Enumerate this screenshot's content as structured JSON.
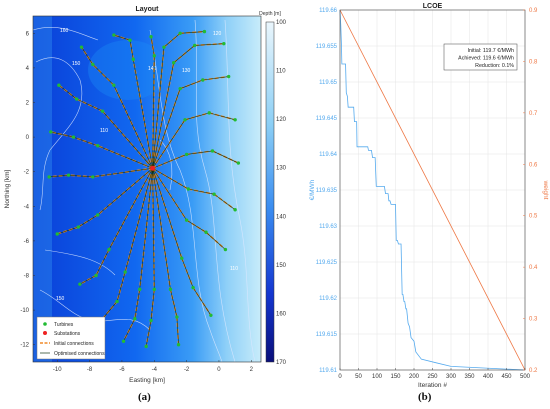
{
  "caption_a": "(a)",
  "caption_b": "(b)",
  "chart_data": [
    {
      "type": "map",
      "title": "Layout",
      "xlabel": "Easting [km]",
      "ylabel": "Northing [km]",
      "xlim": [
        -11.5,
        2.6
      ],
      "ylim": [
        -13,
        7
      ],
      "xticks": [
        -10,
        -8,
        -6,
        -4,
        -2,
        0,
        2
      ],
      "yticks": [
        -12,
        -10,
        -8,
        -6,
        -4,
        -2,
        0,
        2,
        4,
        6
      ],
      "colorbar": {
        "label": "Depth [m]",
        "range": [
          100,
          170
        ],
        "ticks": [
          100,
          110,
          120,
          130,
          140,
          150,
          160,
          170
        ]
      },
      "contour_labels": [
        "160",
        "150",
        "140",
        "130",
        "120",
        "110",
        "150",
        "140",
        "110"
      ],
      "substation": {
        "x": -4.1,
        "y": -1.8
      },
      "legend": {
        "position": "bottom-left",
        "entries": [
          "Turbines",
          "Substations",
          "Initial connections",
          "Optimised connections"
        ]
      },
      "colors": {
        "turbine": "#22bb33",
        "substation": "#ee2222",
        "initial": "#f08a2a",
        "optimised": "#113311"
      }
    },
    {
      "type": "line",
      "title": "LCOE",
      "xlabel": "Iteration #",
      "ylabel_left": "€/MWh",
      "ylabel_right": "weight",
      "xlim": [
        0,
        500
      ],
      "xticks": [
        0,
        50,
        100,
        150,
        200,
        250,
        300,
        350,
        400,
        450,
        500
      ],
      "ylim_left": [
        119.61,
        119.66
      ],
      "yticks_left": [
        "119.61",
        "119.615",
        "119.62",
        "119.625",
        "119.63",
        "119.635",
        "119.64",
        "119.645",
        "119.65",
        "119.655",
        "119.66"
      ],
      "ylim_right": [
        0.2,
        0.9
      ],
      "yticks_right": [
        "0.2",
        "0.3",
        "0.4",
        "0.5",
        "0.6",
        "0.7",
        "0.8",
        "0.9"
      ],
      "annotation": [
        "Initial: 119.7 €/MWh",
        "Achieved: 119.6 €/MWh",
        "Reduction: 0.1%"
      ],
      "colors": {
        "lcoe": "#55aaee",
        "weight": "#ee7744"
      },
      "series": [
        {
          "axis": "left",
          "x": [
            0,
            2,
            4,
            5,
            15,
            17,
            20,
            22,
            37,
            39,
            45,
            46,
            75,
            77,
            85,
            88,
            95,
            98,
            120,
            123,
            130,
            132,
            135,
            138,
            150,
            152,
            155,
            158,
            165,
            168,
            170,
            173,
            175,
            178,
            180,
            184,
            188,
            192,
            200,
            205,
            220,
            260,
            300,
            500
          ],
          "y": [
            119.66,
            119.658,
            119.655,
            119.6525,
            119.6525,
            119.6485,
            119.648,
            119.6465,
            119.6465,
            119.6445,
            119.6445,
            119.641,
            119.641,
            119.6405,
            119.6405,
            119.6395,
            119.6395,
            119.6355,
            119.6355,
            119.6345,
            119.6345,
            119.6335,
            119.6335,
            119.633,
            119.633,
            119.628,
            119.628,
            119.6275,
            119.6275,
            119.6205,
            119.6205,
            119.6195,
            119.6195,
            119.6185,
            119.6185,
            119.6165,
            119.616,
            119.6145,
            119.614,
            119.6125,
            119.6115,
            119.611,
            119.6105,
            119.61
          ]
        },
        {
          "axis": "right",
          "x": [
            0,
            500
          ],
          "y": [
            0.9,
            0.2
          ]
        }
      ]
    }
  ]
}
